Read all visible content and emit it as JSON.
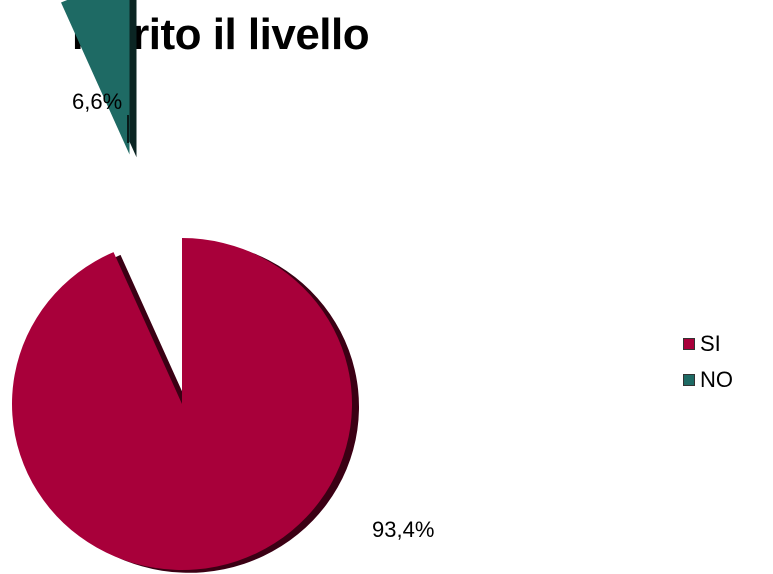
{
  "chart_data": {
    "type": "pie",
    "title": "Merito il livello",
    "slices": [
      {
        "name": "SI",
        "value": 93.4,
        "label": "93,4%",
        "color": "#a8003a"
      },
      {
        "name": "NO",
        "value": 6.6,
        "label": "6,6%",
        "color": "#1e6a64"
      }
    ],
    "legend": {
      "position": "right",
      "items": [
        "SI",
        "NO"
      ]
    },
    "exploded": true,
    "three_d": true
  }
}
